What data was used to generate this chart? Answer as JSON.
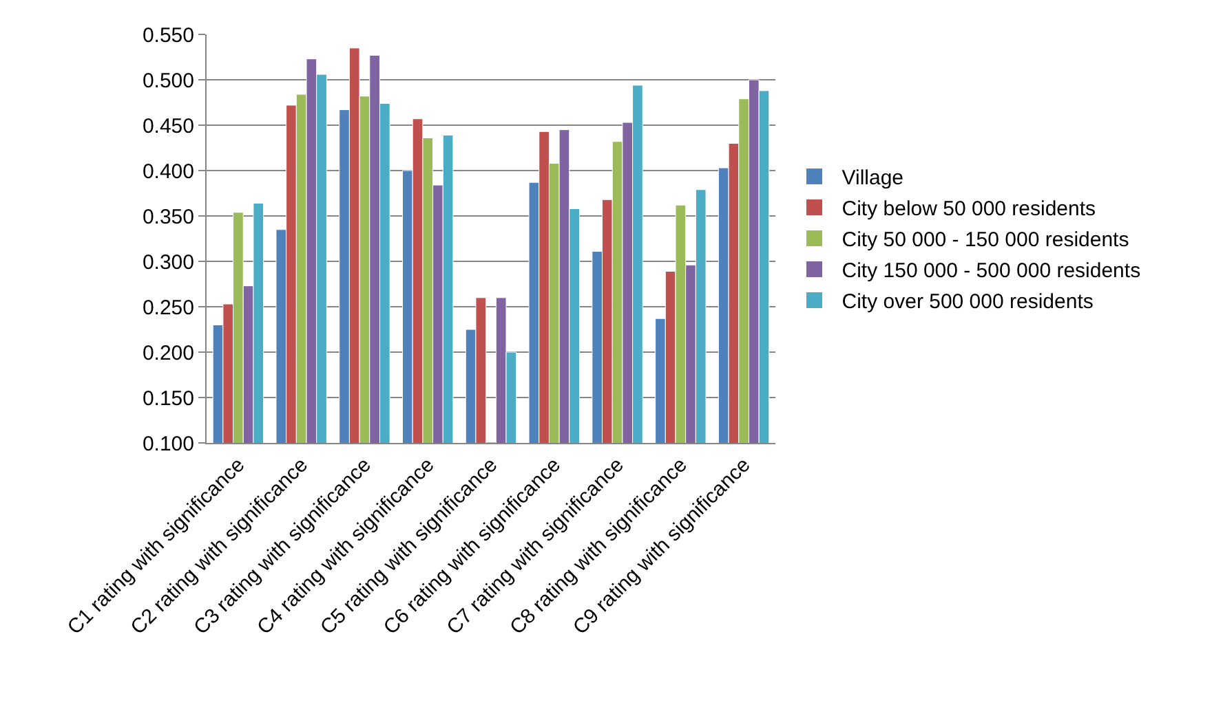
{
  "chart_data": {
    "type": "bar",
    "categories": [
      "C1 rating with significance",
      "C2 rating with significance",
      "C3 rating with significance",
      "C4 rating with significance",
      "C5 rating with significance",
      "C6 rating with significance",
      "C7 rating with significance",
      "C8 rating with significance",
      "C9 rating with significance"
    ],
    "series": [
      {
        "name": "Village",
        "color": "#4f81bd",
        "values": [
          0.23,
          0.335,
          0.467,
          0.4,
          0.225,
          0.387,
          0.311,
          0.237,
          0.403
        ]
      },
      {
        "name": "City below 50 000 residents",
        "color": "#c0504d",
        "values": [
          0.253,
          0.472,
          0.535,
          0.457,
          0.26,
          0.443,
          0.368,
          0.289,
          0.43
        ]
      },
      {
        "name": "City 50 000 - 150 000 residents",
        "color": "#9bbb59",
        "values": [
          0.354,
          0.484,
          0.482,
          0.436,
          0.101,
          0.408,
          0.432,
          0.362,
          0.479
        ]
      },
      {
        "name": "City 150 000 - 500 000 residents",
        "color": "#8064a2",
        "values": [
          0.273,
          0.523,
          0.527,
          0.384,
          0.26,
          0.445,
          0.453,
          0.296,
          0.5
        ]
      },
      {
        "name": "City over 500 000 residents",
        "color": "#4bacc6",
        "values": [
          0.364,
          0.506,
          0.474,
          0.439,
          0.2,
          0.358,
          0.494,
          0.379,
          0.488
        ]
      }
    ],
    "ylim": [
      0.1,
      0.55
    ],
    "yticks": [
      {
        "value": 0.1,
        "label": "0.100"
      },
      {
        "value": 0.15,
        "label": "0.150"
      },
      {
        "value": 0.2,
        "label": "0.200"
      },
      {
        "value": 0.25,
        "label": "0.250"
      },
      {
        "value": 0.3,
        "label": "0.300"
      },
      {
        "value": 0.35,
        "label": "0.350"
      },
      {
        "value": 0.4,
        "label": "0.400"
      },
      {
        "value": 0.45,
        "label": "0.450"
      },
      {
        "value": 0.5,
        "label": "0.500"
      },
      {
        "value": 0.55,
        "label": "0.550"
      }
    ],
    "grid": "y",
    "legend": "right"
  }
}
